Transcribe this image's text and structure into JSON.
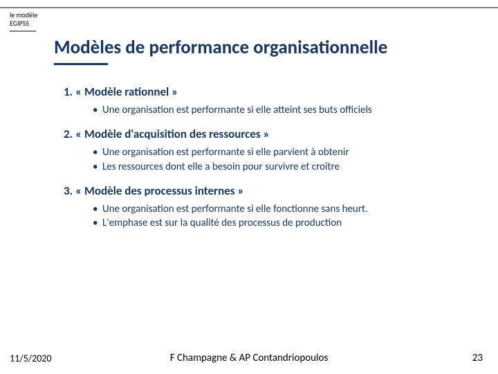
{
  "corner": {
    "line1": "le modèle",
    "line2": "EGIPSS"
  },
  "title": "Modèles de performance organisationnelle",
  "sections": [
    {
      "heading": "1. « Modèle rationnel »",
      "bullets": [
        "Une organisation est performante si elle atteint ses buts officiels"
      ]
    },
    {
      "heading": "2. « Modèle d'acquisition des ressources »",
      "bullets": [
        "Une organisation est performante si elle parvient à obtenir",
        "Les ressources dont elle a besoin pour survivre et croître"
      ]
    },
    {
      "heading": "3. « Modèle des processus internes »",
      "bullets": [
        "Une organisation est performante si elle fonctionne sans heurt.",
        "L'emphase est sur la qualité des processus de production"
      ]
    }
  ],
  "footer": {
    "date": "11/5/2020",
    "author": "F Champagne & AP Contandriopoulos",
    "page": "23"
  },
  "colors": {
    "heading": "#17365d",
    "rule": "#7f7f7f",
    "background": "#ffffff"
  }
}
